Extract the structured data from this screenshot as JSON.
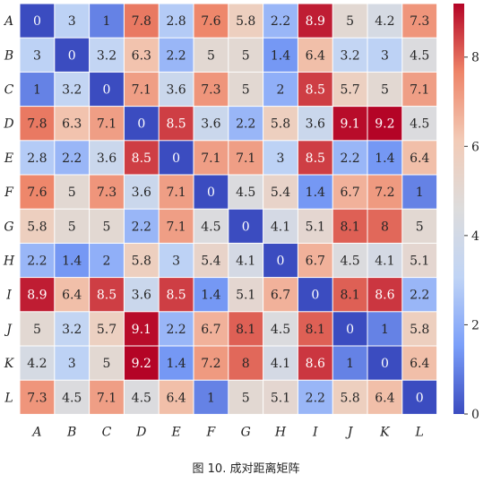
{
  "caption": "图 10. 成对距离矩阵",
  "chart_data": {
    "type": "heatmap",
    "rows": [
      "A",
      "B",
      "C",
      "D",
      "E",
      "F",
      "G",
      "H",
      "I",
      "J",
      "K",
      "L"
    ],
    "columns": [
      "A",
      "B",
      "C",
      "D",
      "E",
      "F",
      "G",
      "H",
      "I",
      "J",
      "K",
      "L"
    ],
    "values": [
      [
        0,
        3,
        1,
        7.8,
        2.8,
        7.6,
        5.8,
        2.2,
        8.9,
        5,
        4.2,
        7.3
      ],
      [
        3,
        0,
        3.2,
        6.3,
        2.2,
        5,
        5,
        1.4,
        6.4,
        3.2,
        3,
        4.5
      ],
      [
        1,
        3.2,
        0,
        7.1,
        3.6,
        7.3,
        5,
        2,
        8.5,
        5.7,
        5,
        7.1
      ],
      [
        7.8,
        6.3,
        7.1,
        0,
        8.5,
        3.6,
        2.2,
        5.8,
        3.6,
        9.1,
        9.2,
        4.5
      ],
      [
        2.8,
        2.2,
        3.6,
        8.5,
        0,
        7.1,
        7.1,
        3,
        8.5,
        2.2,
        1.4,
        6.4
      ],
      [
        7.6,
        5,
        7.3,
        3.6,
        7.1,
        0,
        4.5,
        5.4,
        1.4,
        6.7,
        7.2,
        1
      ],
      [
        5.8,
        5,
        5,
        2.2,
        7.1,
        4.5,
        0,
        4.1,
        5.1,
        8.1,
        8,
        5
      ],
      [
        2.2,
        1.4,
        2,
        5.8,
        3,
        5.4,
        4.1,
        0,
        6.7,
        4.5,
        4.1,
        5.1
      ],
      [
        8.9,
        6.4,
        8.5,
        3.6,
        8.5,
        1.4,
        5.1,
        6.7,
        0,
        8.1,
        8.6,
        2.2
      ],
      [
        5,
        3.2,
        5.7,
        9.1,
        2.2,
        6.7,
        8.1,
        4.5,
        8.1,
        0,
        1,
        5.8
      ],
      [
        4.2,
        3,
        5,
        9.2,
        1.4,
        7.2,
        8,
        4.1,
        8.6,
        1,
        0,
        6.4
      ],
      [
        7.3,
        4.5,
        7.1,
        4.5,
        6.4,
        1,
        5,
        5.1,
        2.2,
        5.8,
        6.4,
        0
      ]
    ],
    "colormap": "coolwarm",
    "colormap_stops": [
      "#3b4cc0",
      "#7b9ff9",
      "#c0d4f5",
      "#dddcdc",
      "#f2cbb7",
      "#ee8468",
      "#b40426"
    ],
    "value_range": [
      0,
      9.2
    ],
    "colorbar": {
      "ticks": [
        0,
        2,
        4,
        6,
        8
      ],
      "tick_labels": [
        "0",
        "2",
        "4",
        "6",
        "8"
      ]
    },
    "annotations": "cell values shown in each cell"
  }
}
